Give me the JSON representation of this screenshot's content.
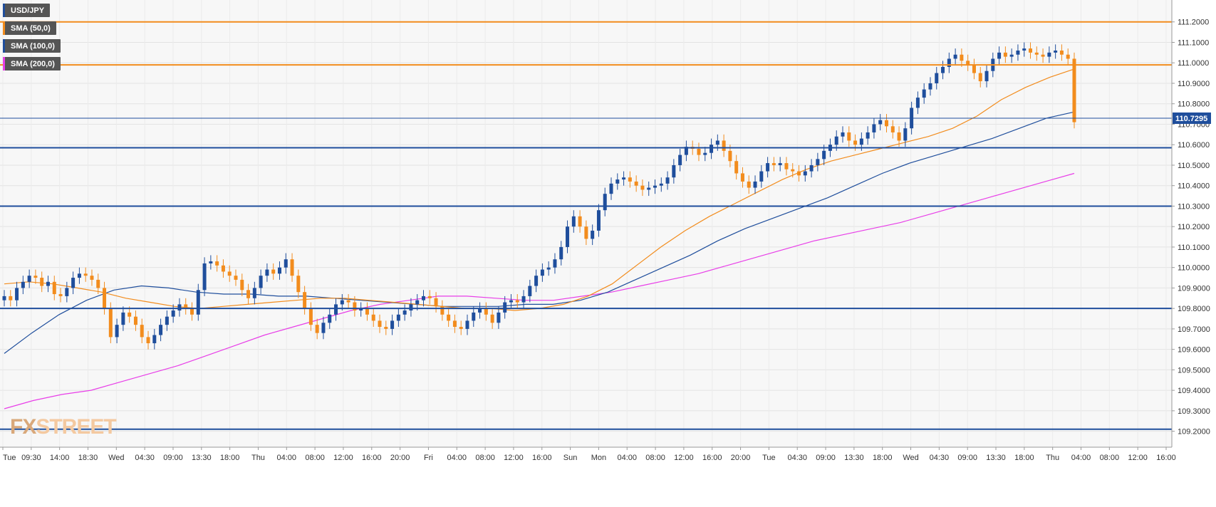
{
  "legend": [
    {
      "label": "USD/JPY",
      "color": "#1f4e9c"
    },
    {
      "label": "SMA (50,0)",
      "color": "#f28c1d"
    },
    {
      "label": "SMA (100,0)",
      "color": "#1f4e9c"
    },
    {
      "label": "SMA (200,0)",
      "color": "#e83ee8"
    }
  ],
  "logo": {
    "fx": "FX",
    "street": "STREET"
  },
  "price_tag": "110.7295",
  "chart_data": {
    "type": "candlestick",
    "title": "",
    "series_name": "USD/JPY",
    "ylim": [
      109.15,
      111.3
    ],
    "grid": true,
    "ytick_labels": [
      "109.2000",
      "109.3000",
      "109.4000",
      "109.5000",
      "109.6000",
      "109.7000",
      "109.8000",
      "109.9000",
      "110.0000",
      "110.1000",
      "110.2000",
      "110.3000",
      "110.4000",
      "110.5000",
      "110.6000",
      "110.7000",
      "110.8000",
      "110.9000",
      "111.0000",
      "111.1000",
      "111.2000"
    ],
    "xtick_labels": [
      "Tue",
      "09:30",
      "14:00",
      "18:30",
      "Wed",
      "04:30",
      "09:00",
      "13:30",
      "18:00",
      "Thu",
      "04:00",
      "08:00",
      "12:00",
      "16:00",
      "20:00",
      "Fri",
      "04:00",
      "08:00",
      "12:00",
      "16:00",
      "Sun",
      "Mon",
      "04:00",
      "08:00",
      "12:00",
      "16:00",
      "20:00",
      "Tue",
      "04:30",
      "09:00",
      "13:30",
      "18:00",
      "Wed",
      "04:30",
      "09:00",
      "13:30",
      "18:00",
      "Thu",
      "04:00",
      "08:00",
      "12:00",
      "16:00"
    ],
    "current_price": 110.7295,
    "horizontal_levels": [
      {
        "value": 111.2,
        "color": "#f28c1d"
      },
      {
        "value": 110.99,
        "color": "#f28c1d"
      },
      {
        "value": 110.7295,
        "color": "#1f4e9c",
        "thin": true
      },
      {
        "value": 110.585,
        "color": "#1f4e9c"
      },
      {
        "value": 110.3,
        "color": "#1f4e9c"
      },
      {
        "value": 109.8,
        "color": "#1f4e9c"
      },
      {
        "value": 109.21,
        "color": "#1f4e9c"
      }
    ],
    "closes": [
      109.86,
      109.84,
      109.9,
      109.93,
      109.96,
      109.95,
      109.91,
      109.93,
      109.87,
      109.86,
      109.9,
      109.95,
      109.97,
      109.96,
      109.94,
      109.9,
      109.8,
      109.66,
      109.72,
      109.78,
      109.76,
      109.72,
      109.66,
      109.63,
      109.67,
      109.72,
      109.76,
      109.79,
      109.82,
      109.8,
      109.77,
      109.89,
      110.02,
      110.03,
      110.01,
      109.98,
      109.96,
      109.94,
      109.89,
      109.85,
      109.9,
      109.96,
      109.99,
      109.97,
      110.0,
      110.04,
      109.96,
      109.88,
      109.8,
      109.72,
      109.68,
      109.73,
      109.77,
      109.82,
      109.84,
      109.83,
      109.79,
      109.8,
      109.77,
      109.74,
      109.71,
      109.7,
      109.74,
      109.77,
      109.79,
      109.82,
      109.84,
      109.86,
      109.85,
      109.81,
      109.77,
      109.74,
      109.71,
      109.7,
      109.74,
      109.78,
      109.8,
      109.77,
      109.73,
      109.78,
      109.83,
      109.84,
      109.83,
      109.86,
      109.91,
      109.96,
      109.99,
      110.0,
      110.04,
      110.1,
      110.2,
      110.25,
      110.2,
      110.14,
      110.18,
      110.28,
      110.36,
      110.41,
      110.43,
      110.44,
      110.42,
      110.4,
      110.38,
      110.39,
      110.4,
      110.41,
      110.44,
      110.5,
      110.55,
      110.59,
      110.58,
      110.55,
      110.56,
      110.6,
      110.62,
      110.57,
      110.52,
      110.46,
      110.42,
      110.39,
      110.42,
      110.47,
      110.51,
      110.5,
      110.51,
      110.48,
      110.47,
      110.45,
      110.47,
      110.5,
      110.53,
      110.57,
      110.6,
      110.64,
      110.66,
      110.62,
      110.6,
      110.63,
      110.66,
      110.7,
      110.72,
      110.69,
      110.66,
      110.62,
      110.68,
      110.78,
      110.83,
      110.87,
      110.9,
      110.95,
      110.98,
      111.02,
      111.04,
      111.01,
      110.99,
      110.95,
      110.91,
      110.96,
      111.02,
      111.05,
      111.03,
      111.04,
      111.06,
      111.07,
      111.05,
      111.04,
      111.03,
      111.05,
      111.06,
      111.04,
      111.02,
      110.71
    ],
    "opens": [
      109.84,
      109.86,
      109.84,
      109.9,
      109.93,
      109.96,
      109.95,
      109.91,
      109.93,
      109.87,
      109.86,
      109.9,
      109.95,
      109.97,
      109.96,
      109.94,
      109.9,
      109.8,
      109.66,
      109.72,
      109.78,
      109.76,
      109.72,
      109.66,
      109.63,
      109.67,
      109.72,
      109.76,
      109.79,
      109.82,
      109.8,
      109.77,
      109.89,
      110.02,
      110.03,
      110.01,
      109.98,
      109.96,
      109.94,
      109.89,
      109.85,
      109.9,
      109.96,
      109.99,
      109.97,
      110.0,
      110.04,
      109.96,
      109.88,
      109.8,
      109.72,
      109.68,
      109.73,
      109.77,
      109.82,
      109.84,
      109.83,
      109.79,
      109.8,
      109.77,
      109.74,
      109.71,
      109.7,
      109.74,
      109.77,
      109.79,
      109.82,
      109.84,
      109.86,
      109.85,
      109.81,
      109.77,
      109.74,
      109.71,
      109.7,
      109.74,
      109.78,
      109.8,
      109.77,
      109.73,
      109.78,
      109.83,
      109.84,
      109.83,
      109.86,
      109.91,
      109.96,
      109.99,
      110.0,
      110.04,
      110.1,
      110.2,
      110.25,
      110.2,
      110.14,
      110.18,
      110.28,
      110.36,
      110.41,
      110.43,
      110.44,
      110.42,
      110.4,
      110.38,
      110.39,
      110.4,
      110.41,
      110.44,
      110.5,
      110.55,
      110.59,
      110.58,
      110.55,
      110.56,
      110.6,
      110.62,
      110.57,
      110.52,
      110.46,
      110.42,
      110.39,
      110.42,
      110.47,
      110.51,
      110.5,
      110.51,
      110.48,
      110.47,
      110.45,
      110.47,
      110.5,
      110.53,
      110.57,
      110.6,
      110.64,
      110.66,
      110.62,
      110.6,
      110.63,
      110.66,
      110.7,
      110.72,
      110.69,
      110.66,
      110.62,
      110.68,
      110.78,
      110.83,
      110.87,
      110.9,
      110.95,
      110.98,
      111.02,
      111.04,
      111.01,
      110.99,
      110.95,
      110.91,
      110.96,
      111.02,
      111.05,
      111.03,
      111.04,
      111.06,
      111.07,
      111.05,
      111.04,
      111.03,
      111.05,
      111.06,
      111.04,
      111.02
    ],
    "sma50": [
      109.92,
      109.93,
      109.92,
      109.9,
      109.88,
      109.85,
      109.83,
      109.81,
      109.8,
      109.81,
      109.82,
      109.83,
      109.84,
      109.85,
      109.85,
      109.84,
      109.83,
      109.82,
      109.81,
      109.8,
      109.8,
      109.79,
      109.8,
      109.82,
      109.86,
      109.92,
      110.01,
      110.1,
      110.18,
      110.25,
      110.31,
      110.37,
      110.43,
      110.48,
      110.52,
      110.55,
      110.58,
      110.61,
      110.64,
      110.68,
      110.74,
      110.82,
      110.88,
      110.93,
      110.97
    ],
    "sma100": [
      109.58,
      109.68,
      109.77,
      109.84,
      109.89,
      109.91,
      109.9,
      109.88,
      109.87,
      109.87,
      109.86,
      109.86,
      109.85,
      109.84,
      109.83,
      109.82,
      109.81,
      109.81,
      109.81,
      109.82,
      109.82,
      109.84,
      109.88,
      109.94,
      110.0,
      110.06,
      110.13,
      110.19,
      110.24,
      110.29,
      110.34,
      110.4,
      110.46,
      110.51,
      110.55,
      110.59,
      110.63,
      110.68,
      110.73,
      110.76
    ],
    "sma200": [
      109.31,
      109.35,
      109.38,
      109.4,
      109.44,
      109.48,
      109.52,
      109.57,
      109.62,
      109.67,
      109.71,
      109.75,
      109.79,
      109.82,
      109.84,
      109.86,
      109.86,
      109.85,
      109.84,
      109.84,
      109.86,
      109.88,
      109.91,
      109.94,
      109.97,
      110.01,
      110.05,
      110.09,
      110.13,
      110.16,
      110.19,
      110.22,
      110.26,
      110.3,
      110.34,
      110.38,
      110.42,
      110.46
    ]
  }
}
